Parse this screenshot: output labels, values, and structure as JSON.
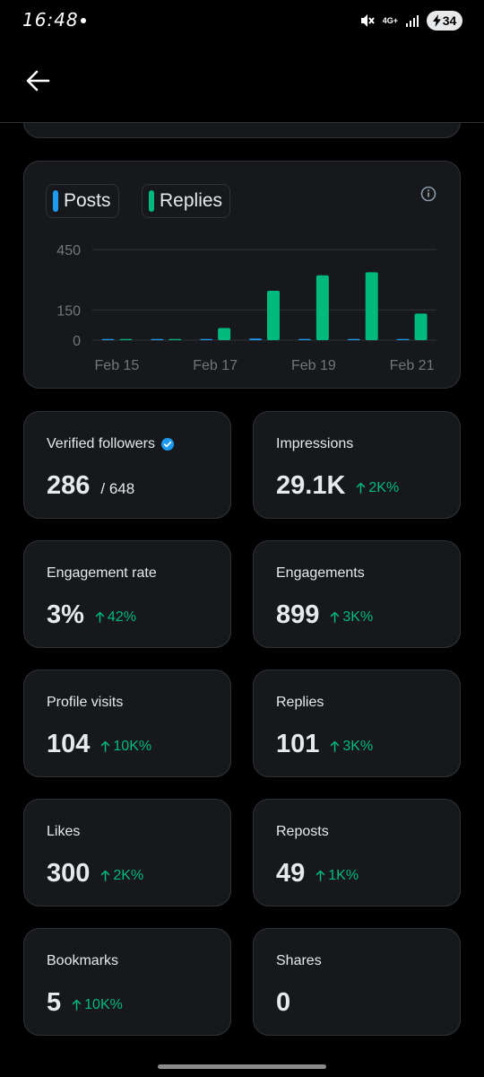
{
  "status_bar": {
    "time": "16:48",
    "network": "4G+",
    "battery": "34"
  },
  "chart": {
    "legend": [
      {
        "label": "Posts",
        "color": "#1d9bf0"
      },
      {
        "label": "Replies",
        "color": "#00ba7c"
      }
    ]
  },
  "chart_data": {
    "type": "bar",
    "x": [
      "Feb 15",
      "Feb 16",
      "Feb 17",
      "Feb 18",
      "Feb 19",
      "Feb 20",
      "Feb 21"
    ],
    "x_tick_labels": [
      "Feb 15",
      "Feb 17",
      "Feb 19",
      "Feb 21"
    ],
    "y_ticks": [
      0,
      150,
      450
    ],
    "ylim": [
      0,
      450
    ],
    "series": [
      {
        "name": "Posts",
        "color": "#1d9bf0",
        "values": [
          0,
          0,
          2,
          8,
          2,
          1,
          0
        ]
      },
      {
        "name": "Replies",
        "color": "#00ba7c",
        "values": [
          2,
          0,
          60,
          245,
          322,
          337,
          132
        ]
      }
    ],
    "grid": true,
    "legend_position": "top-left"
  },
  "stats": [
    {
      "label": "Verified followers",
      "value": "286",
      "sub": "/ 648",
      "delta": "",
      "verified": true
    },
    {
      "label": "Impressions",
      "value": "29.1K",
      "sub": "",
      "delta": "2K%"
    },
    {
      "label": "Engagement rate",
      "value": "3%",
      "sub": "",
      "delta": "42%"
    },
    {
      "label": "Engagements",
      "value": "899",
      "sub": "",
      "delta": "3K%"
    },
    {
      "label": "Profile visits",
      "value": "104",
      "sub": "",
      "delta": "10K%"
    },
    {
      "label": "Replies",
      "value": "101",
      "sub": "",
      "delta": "3K%"
    },
    {
      "label": "Likes",
      "value": "300",
      "sub": "",
      "delta": "2K%"
    },
    {
      "label": "Reposts",
      "value": "49",
      "sub": "",
      "delta": "1K%"
    },
    {
      "label": "Bookmarks",
      "value": "5",
      "sub": "",
      "delta": "10K%"
    },
    {
      "label": "Shares",
      "value": "0",
      "sub": "",
      "delta": ""
    }
  ]
}
